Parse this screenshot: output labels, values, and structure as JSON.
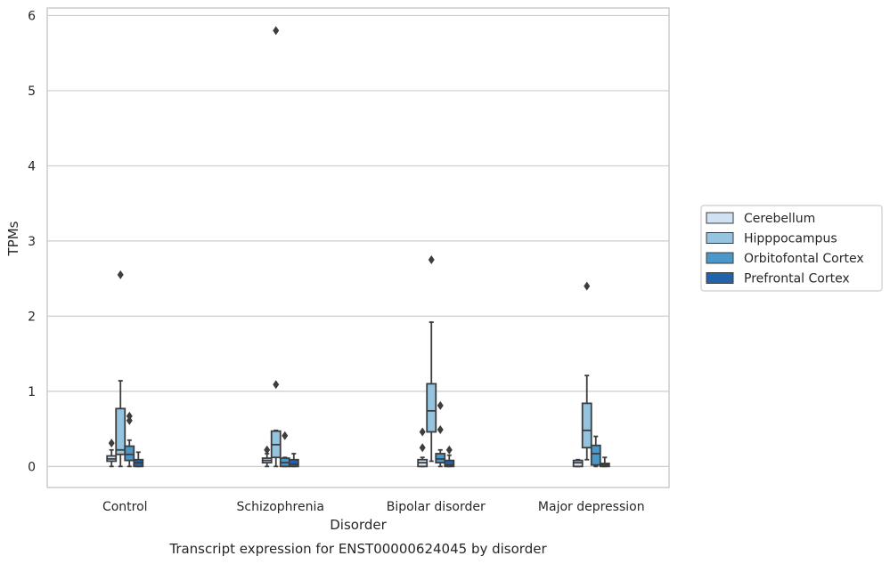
{
  "chart_data": {
    "type": "box",
    "title": "",
    "caption": "Transcript expression for ENST00000624045 by disorder",
    "xlabel": "Disorder",
    "ylabel": "TPMs",
    "ylim": [
      -0.28,
      6.1
    ],
    "yticks": [
      0,
      1,
      2,
      3,
      4,
      5,
      6
    ],
    "grid": "horizontal",
    "legend_position": "right",
    "categories": [
      "Control",
      "Schizophrenia",
      "Bipolar disorder",
      "Major depression"
    ],
    "series": [
      {
        "name": "Cerebellum",
        "color": "#d0e1f2",
        "boxes": [
          {
            "whislo": 0.0,
            "q1": 0.07,
            "med": 0.1,
            "q3": 0.14,
            "whishi": 0.22,
            "fliers": [
              0.31
            ]
          },
          {
            "whislo": 0.0,
            "q1": 0.05,
            "med": 0.08,
            "q3": 0.11,
            "whishi": 0.17,
            "fliers": [
              0.22
            ]
          },
          {
            "whislo": 0.0,
            "q1": 0.0,
            "med": 0.05,
            "q3": 0.09,
            "whishi": 0.12,
            "fliers": [
              0.25,
              0.46
            ]
          },
          {
            "whislo": 0.0,
            "q1": 0.0,
            "med": 0.05,
            "q3": 0.08,
            "whishi": 0.09,
            "fliers": []
          }
        ]
      },
      {
        "name": "Hipppocampus",
        "color": "#94c4df",
        "boxes": [
          {
            "whislo": 0.0,
            "q1": 0.16,
            "med": 0.22,
            "q3": 0.77,
            "whishi": 1.14,
            "fliers": [
              2.55
            ]
          },
          {
            "whislo": 0.0,
            "q1": 0.12,
            "med": 0.29,
            "q3": 0.47,
            "whishi": 0.48,
            "fliers": [
              1.09,
              5.8
            ]
          },
          {
            "whislo": 0.07,
            "q1": 0.46,
            "med": 0.74,
            "q3": 1.1,
            "whishi": 1.92,
            "fliers": [
              2.75
            ]
          },
          {
            "whislo": 0.09,
            "q1": 0.25,
            "med": 0.48,
            "q3": 0.84,
            "whishi": 1.21,
            "fliers": [
              2.4
            ]
          }
        ]
      },
      {
        "name": "Orbitofontal Cortex",
        "color": "#4a98c9",
        "boxes": [
          {
            "whislo": 0.0,
            "q1": 0.08,
            "med": 0.16,
            "q3": 0.27,
            "whishi": 0.35,
            "fliers": [
              0.61,
              0.67
            ]
          },
          {
            "whislo": 0.0,
            "q1": 0.0,
            "med": 0.05,
            "q3": 0.11,
            "whishi": 0.12,
            "fliers": [
              0.41
            ]
          },
          {
            "whislo": 0.0,
            "q1": 0.05,
            "med": 0.1,
            "q3": 0.17,
            "whishi": 0.22,
            "fliers": [
              0.49,
              0.81
            ]
          },
          {
            "whislo": 0.0,
            "q1": 0.02,
            "med": 0.17,
            "q3": 0.28,
            "whishi": 0.4,
            "fliers": []
          }
        ]
      },
      {
        "name": "Prefrontal Cortex",
        "color": "#2163aa",
        "boxes": [
          {
            "whislo": 0.0,
            "q1": 0.0,
            "med": 0.05,
            "q3": 0.09,
            "whishi": 0.19,
            "fliers": []
          },
          {
            "whislo": 0.0,
            "q1": 0.0,
            "med": 0.03,
            "q3": 0.09,
            "whishi": 0.17,
            "fliers": []
          },
          {
            "whislo": 0.0,
            "q1": 0.0,
            "med": 0.02,
            "q3": 0.08,
            "whishi": 0.15,
            "fliers": [
              0.22
            ]
          },
          {
            "whislo": 0.0,
            "q1": 0.0,
            "med": 0.02,
            "q3": 0.04,
            "whishi": 0.12,
            "fliers": []
          }
        ]
      }
    ]
  }
}
